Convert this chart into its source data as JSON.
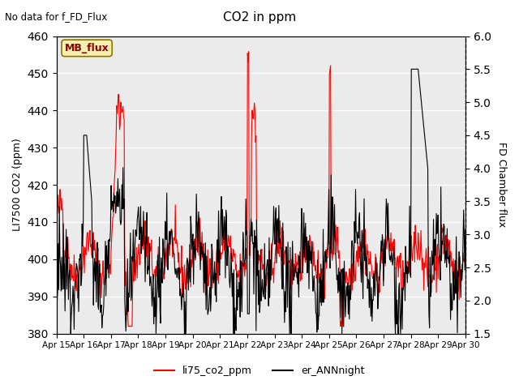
{
  "title": "CO2 in ppm",
  "no_data_text": "No data for f_FD_Flux",
  "ylabel_left": "LI7500 CO2 (ppm)",
  "ylabel_right": "FD Chamber flux",
  "ylim_left": [
    380,
    460
  ],
  "ylim_right": [
    1.5,
    6.0
  ],
  "yticks_left": [
    380,
    390,
    400,
    410,
    420,
    430,
    440,
    450,
    460
  ],
  "yticks_right": [
    1.5,
    2.0,
    2.5,
    3.0,
    3.5,
    4.0,
    4.5,
    5.0,
    5.5,
    6.0
  ],
  "xtick_labels": [
    "Apr 15",
    "Apr 16",
    "Apr 17",
    "Apr 18",
    "Apr 19",
    "Apr 20",
    "Apr 21",
    "Apr 22",
    "Apr 23",
    "Apr 24",
    "Apr 25",
    "Apr 26",
    "Apr 27",
    "Apr 28",
    "Apr 29",
    "Apr 30"
  ],
  "legend_label_red": "li75_co2_ppm",
  "legend_label_black": "er_ANNnight",
  "mb_flux_label": "MB_flux",
  "line_color_red": "#ff0000",
  "line_color_black": "#000000",
  "plot_bg_color": "#ebebeb"
}
